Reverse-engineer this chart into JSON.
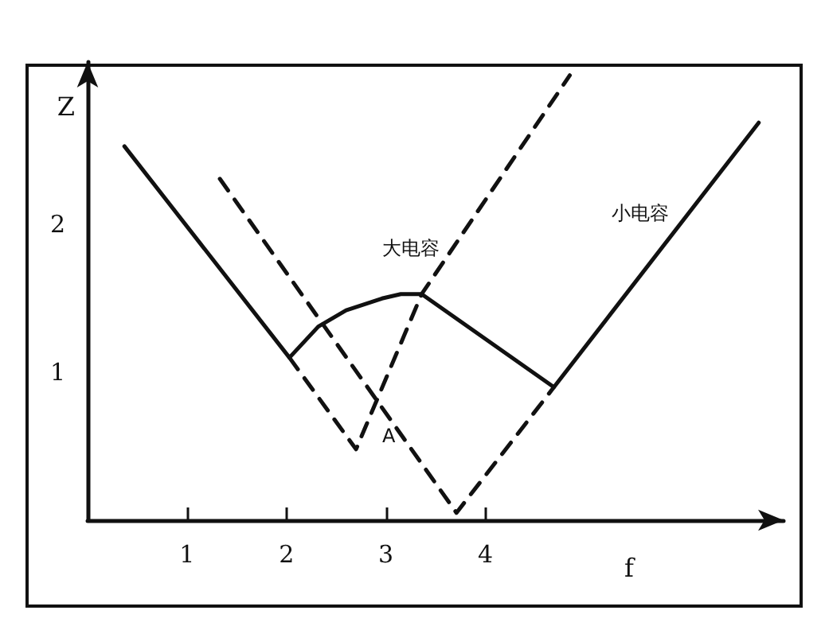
{
  "chart_data": {
    "type": "line",
    "xlabel": "f",
    "ylabel": "Z",
    "xlim": [
      0,
      7
    ],
    "ylim": [
      0,
      3.1
    ],
    "xticks": [
      1,
      2,
      3,
      4
    ],
    "yticks": [
      1,
      2
    ],
    "grid": false,
    "marker": "none",
    "series": [
      {
        "color": "#111111",
        "line_style": "solid",
        "x": [
          0.37,
          2.03,
          2.32,
          2.6,
          2.96,
          3.15,
          3.36,
          4.69,
          6.75
        ],
        "values": [
          2.53,
          1.1,
          1.31,
          1.42,
          1.5,
          1.53,
          1.53,
          0.9,
          2.69
        ]
      },
      {
        "color": "#111111",
        "line_style": "dashed",
        "x": [
          2.03,
          2.7,
          3.36,
          4.85
        ],
        "values": [
          1.1,
          0.48,
          1.53,
          3.01
        ]
      },
      {
        "color": "#111111",
        "line_style": "dashed",
        "x": [
          1.33,
          3.71,
          4.69
        ],
        "values": [
          2.31,
          0.05,
          0.9
        ]
      }
    ],
    "annotations": [
      "大电容",
      "小电容",
      "A"
    ]
  }
}
